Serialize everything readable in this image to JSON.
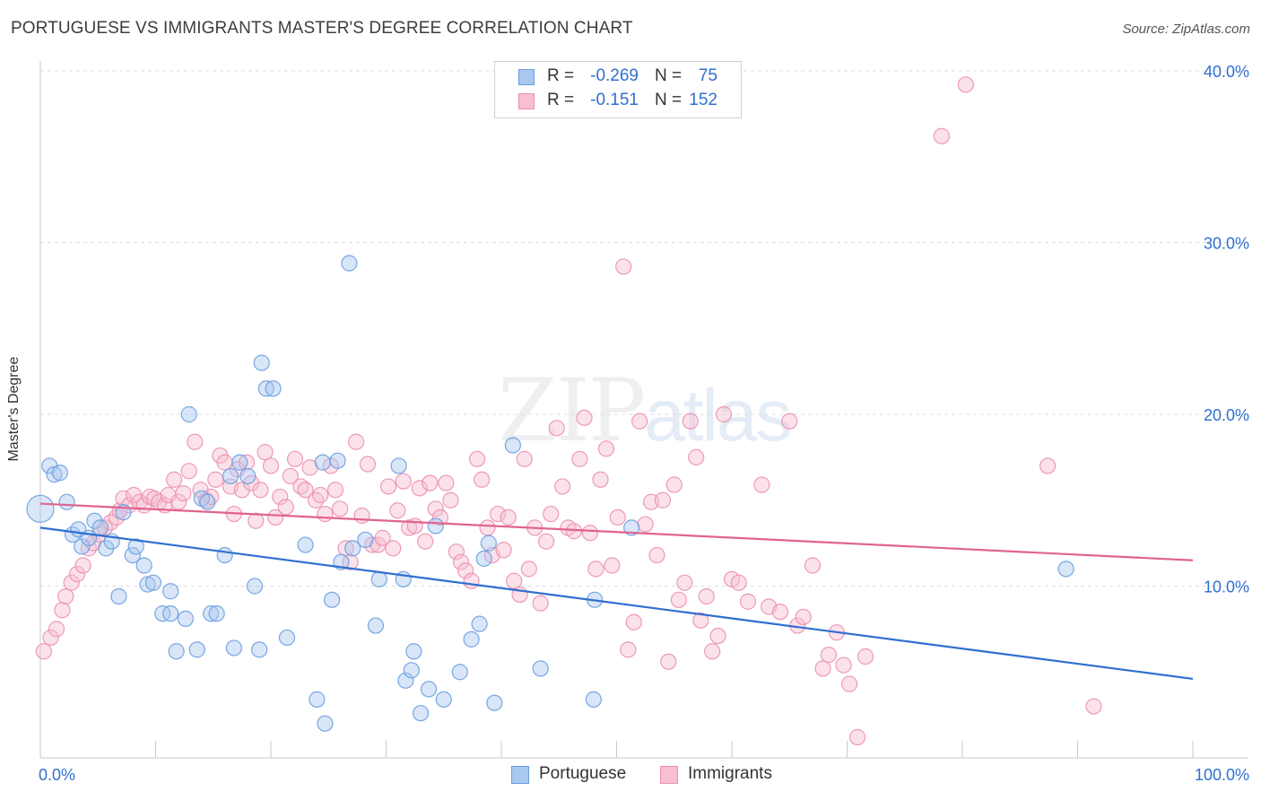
{
  "header": {
    "title": "PORTUGUESE VS IMMIGRANTS MASTER'S DEGREE CORRELATION CHART",
    "source": "Source: ZipAtlas.com"
  },
  "watermark": {
    "zip": "ZIP",
    "atlas": "atlas"
  },
  "legend": {
    "portuguese": {
      "r_label": "R =",
      "r_value": "-0.269",
      "n_label": "N =",
      "n_value": "75"
    },
    "immigrants": {
      "r_label": "R =",
      "r_value": "-0.151",
      "n_label": "N =",
      "n_value": "152"
    }
  },
  "colors": {
    "portuguese_fill": "#a9c8f0",
    "portuguese_stroke": "#6a9de0",
    "portuguese_line": "#2f6fd0",
    "immigrants_fill": "#f7bfd0",
    "immigrants_stroke": "#ec8fae",
    "immigrants_line": "#e0648e",
    "tick_label": "#2f6fcf",
    "grid": "#dddddd"
  },
  "chart_data": {
    "type": "scatter",
    "title": "PORTUGUESE VS IMMIGRANTS MASTER'S DEGREE CORRELATION CHART",
    "xlabel": "",
    "ylabel": "Master's Degree",
    "xlim": [
      0,
      100
    ],
    "ylim": [
      0,
      40
    ],
    "x_tick_labels": [
      "0.0%",
      "100.0%"
    ],
    "y_ticks": [
      10,
      20,
      30,
      40
    ],
    "y_tick_labels": [
      "10.0%",
      "20.0%",
      "30.0%",
      "40.0%"
    ],
    "grid": true,
    "legend_position": "top-center",
    "series": [
      {
        "name": "Portuguese",
        "trend": {
          "x": [
            0,
            100
          ],
          "y": [
            13.4,
            4.6
          ]
        },
        "points": [
          [
            0.0,
            14.5
          ],
          [
            0.8,
            17.0
          ],
          [
            1.2,
            16.5
          ],
          [
            1.7,
            16.6
          ],
          [
            2.3,
            14.9
          ],
          [
            2.8,
            13.0
          ],
          [
            3.3,
            13.3
          ],
          [
            3.6,
            12.3
          ],
          [
            4.2,
            12.8
          ],
          [
            4.7,
            13.8
          ],
          [
            5.2,
            13.4
          ],
          [
            5.7,
            12.2
          ],
          [
            6.2,
            12.6
          ],
          [
            6.8,
            9.4
          ],
          [
            7.2,
            14.3
          ],
          [
            8.0,
            11.8
          ],
          [
            8.3,
            12.3
          ],
          [
            9.0,
            11.2
          ],
          [
            9.3,
            10.1
          ],
          [
            9.8,
            10.2
          ],
          [
            10.6,
            8.4
          ],
          [
            11.3,
            8.4
          ],
          [
            11.3,
            9.7
          ],
          [
            11.8,
            6.2
          ],
          [
            12.6,
            8.1
          ],
          [
            12.9,
            20.0
          ],
          [
            13.6,
            6.3
          ],
          [
            14.0,
            15.1
          ],
          [
            14.5,
            14.9
          ],
          [
            14.8,
            8.4
          ],
          [
            15.3,
            8.4
          ],
          [
            16.0,
            11.8
          ],
          [
            16.5,
            16.4
          ],
          [
            16.8,
            6.4
          ],
          [
            17.3,
            17.2
          ],
          [
            18.0,
            16.4
          ],
          [
            18.6,
            10.0
          ],
          [
            19.0,
            6.3
          ],
          [
            19.2,
            23.0
          ],
          [
            19.6,
            21.5
          ],
          [
            20.2,
            21.5
          ],
          [
            21.4,
            7.0
          ],
          [
            23.0,
            12.4
          ],
          [
            24.0,
            3.4
          ],
          [
            24.5,
            17.2
          ],
          [
            24.7,
            2.0
          ],
          [
            25.3,
            9.2
          ],
          [
            25.8,
            17.3
          ],
          [
            26.1,
            11.4
          ],
          [
            26.8,
            28.8
          ],
          [
            27.1,
            12.2
          ],
          [
            28.2,
            12.7
          ],
          [
            29.1,
            7.7
          ],
          [
            29.4,
            10.4
          ],
          [
            31.1,
            17.0
          ],
          [
            31.5,
            10.4
          ],
          [
            31.7,
            4.5
          ],
          [
            32.2,
            5.1
          ],
          [
            32.4,
            6.2
          ],
          [
            33.0,
            2.6
          ],
          [
            33.7,
            4.0
          ],
          [
            34.3,
            13.5
          ],
          [
            35.0,
            3.4
          ],
          [
            36.4,
            5.0
          ],
          [
            37.4,
            6.9
          ],
          [
            38.1,
            7.8
          ],
          [
            38.5,
            11.6
          ],
          [
            38.9,
            12.5
          ],
          [
            39.4,
            3.2
          ],
          [
            41.0,
            18.2
          ],
          [
            43.4,
            5.2
          ],
          [
            48.0,
            3.4
          ],
          [
            48.1,
            9.2
          ],
          [
            51.3,
            13.4
          ],
          [
            89.0,
            11.0
          ]
        ]
      },
      {
        "name": "Immigrants",
        "trend": {
          "x": [
            0,
            100
          ],
          "y": [
            14.8,
            11.5
          ]
        },
        "points": [
          [
            0.3,
            6.2
          ],
          [
            0.9,
            7.0
          ],
          [
            1.4,
            7.5
          ],
          [
            1.9,
            8.6
          ],
          [
            2.2,
            9.4
          ],
          [
            2.7,
            10.2
          ],
          [
            3.2,
            10.7
          ],
          [
            3.7,
            11.2
          ],
          [
            4.2,
            12.2
          ],
          [
            4.6,
            12.5
          ],
          [
            5.1,
            13.0
          ],
          [
            5.6,
            13.4
          ],
          [
            6.1,
            13.7
          ],
          [
            6.6,
            14.0
          ],
          [
            6.9,
            14.4
          ],
          [
            7.2,
            15.1
          ],
          [
            7.7,
            14.7
          ],
          [
            8.1,
            15.3
          ],
          [
            8.6,
            14.9
          ],
          [
            9.0,
            14.7
          ],
          [
            9.5,
            15.2
          ],
          [
            9.9,
            15.1
          ],
          [
            10.3,
            14.9
          ],
          [
            10.8,
            14.7
          ],
          [
            11.1,
            15.3
          ],
          [
            11.6,
            16.2
          ],
          [
            12.0,
            14.9
          ],
          [
            12.4,
            15.4
          ],
          [
            12.9,
            16.7
          ],
          [
            13.4,
            18.4
          ],
          [
            13.9,
            15.6
          ],
          [
            14.4,
            15.0
          ],
          [
            14.8,
            15.2
          ],
          [
            15.2,
            16.2
          ],
          [
            15.6,
            17.6
          ],
          [
            16.0,
            17.2
          ],
          [
            16.5,
            15.8
          ],
          [
            16.8,
            14.2
          ],
          [
            17.1,
            16.8
          ],
          [
            17.5,
            15.6
          ],
          [
            17.9,
            17.2
          ],
          [
            18.3,
            16.0
          ],
          [
            18.7,
            13.8
          ],
          [
            19.1,
            15.6
          ],
          [
            19.5,
            17.8
          ],
          [
            20.0,
            17.0
          ],
          [
            20.4,
            14.0
          ],
          [
            20.8,
            15.2
          ],
          [
            21.3,
            14.6
          ],
          [
            21.7,
            16.4
          ],
          [
            22.1,
            17.4
          ],
          [
            22.6,
            15.8
          ],
          [
            23.0,
            15.6
          ],
          [
            23.4,
            16.9
          ],
          [
            23.9,
            15.0
          ],
          [
            24.3,
            15.3
          ],
          [
            24.7,
            14.2
          ],
          [
            25.2,
            17.0
          ],
          [
            25.6,
            15.6
          ],
          [
            26.0,
            14.5
          ],
          [
            26.5,
            12.2
          ],
          [
            26.9,
            11.4
          ],
          [
            27.4,
            18.4
          ],
          [
            27.9,
            14.1
          ],
          [
            28.4,
            17.1
          ],
          [
            28.8,
            12.4
          ],
          [
            29.3,
            12.4
          ],
          [
            29.7,
            12.8
          ],
          [
            30.2,
            15.8
          ],
          [
            30.6,
            12.2
          ],
          [
            31.0,
            14.4
          ],
          [
            31.5,
            16.1
          ],
          [
            32.0,
            13.4
          ],
          [
            32.5,
            13.5
          ],
          [
            32.9,
            15.7
          ],
          [
            33.4,
            12.6
          ],
          [
            33.8,
            16.0
          ],
          [
            34.3,
            14.5
          ],
          [
            34.7,
            14.0
          ],
          [
            35.2,
            16.0
          ],
          [
            35.6,
            15.0
          ],
          [
            36.1,
            12.0
          ],
          [
            36.5,
            11.4
          ],
          [
            36.9,
            10.9
          ],
          [
            37.4,
            10.3
          ],
          [
            37.9,
            17.4
          ],
          [
            38.3,
            16.2
          ],
          [
            38.8,
            13.4
          ],
          [
            39.2,
            11.8
          ],
          [
            39.7,
            14.2
          ],
          [
            40.2,
            12.1
          ],
          [
            40.6,
            14.0
          ],
          [
            41.1,
            10.3
          ],
          [
            41.6,
            9.5
          ],
          [
            42.0,
            17.4
          ],
          [
            42.4,
            11.0
          ],
          [
            42.9,
            13.4
          ],
          [
            43.4,
            9.0
          ],
          [
            43.9,
            12.6
          ],
          [
            44.3,
            14.2
          ],
          [
            44.8,
            19.2
          ],
          [
            45.3,
            15.8
          ],
          [
            45.8,
            13.4
          ],
          [
            46.3,
            13.2
          ],
          [
            46.8,
            17.4
          ],
          [
            47.2,
            19.8
          ],
          [
            47.7,
            13.1
          ],
          [
            48.2,
            11.0
          ],
          [
            48.6,
            16.2
          ],
          [
            49.1,
            18.0
          ],
          [
            49.6,
            11.2
          ],
          [
            50.1,
            14.0
          ],
          [
            50.6,
            28.6
          ],
          [
            51.0,
            6.3
          ],
          [
            51.5,
            7.9
          ],
          [
            52.0,
            19.6
          ],
          [
            52.5,
            13.6
          ],
          [
            53.0,
            14.9
          ],
          [
            53.5,
            11.8
          ],
          [
            54.0,
            15.0
          ],
          [
            54.5,
            5.6
          ],
          [
            55.0,
            15.9
          ],
          [
            55.4,
            9.2
          ],
          [
            55.9,
            10.2
          ],
          [
            56.4,
            19.6
          ],
          [
            56.9,
            17.5
          ],
          [
            57.3,
            8.0
          ],
          [
            57.8,
            9.4
          ],
          [
            58.3,
            6.2
          ],
          [
            58.8,
            7.1
          ],
          [
            59.3,
            20.0
          ],
          [
            60.0,
            10.4
          ],
          [
            60.6,
            10.2
          ],
          [
            61.4,
            9.1
          ],
          [
            62.6,
            15.9
          ],
          [
            63.2,
            8.8
          ],
          [
            64.2,
            8.5
          ],
          [
            65.0,
            19.6
          ],
          [
            65.7,
            7.7
          ],
          [
            66.2,
            8.2
          ],
          [
            67.0,
            11.2
          ],
          [
            67.9,
            5.2
          ],
          [
            68.4,
            6.0
          ],
          [
            69.1,
            7.3
          ],
          [
            69.7,
            5.4
          ],
          [
            70.2,
            4.3
          ],
          [
            70.9,
            1.2
          ],
          [
            71.6,
            5.9
          ],
          [
            78.2,
            36.2
          ],
          [
            80.3,
            39.2
          ],
          [
            87.4,
            17.0
          ],
          [
            91.4,
            3.0
          ]
        ]
      }
    ]
  }
}
